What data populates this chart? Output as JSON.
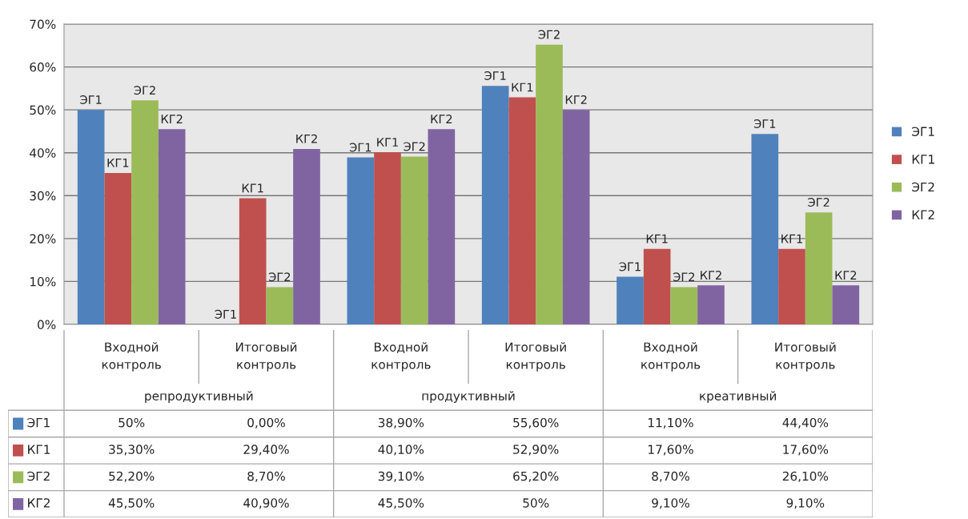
{
  "chart_data": {
    "type": "bar",
    "categories": [
      "Входной контроль",
      "Итоговый контроль",
      "Входной контроль",
      "Итоговый контроль",
      "Входной контроль",
      "Итоговый контроль"
    ],
    "annotations": [
      "репродуктивный",
      "продуктивный",
      "креативный"
    ],
    "series": [
      {
        "name": "ЭГ1",
        "color": "#4f81bd",
        "values": [
          50,
          0,
          38.9,
          55.6,
          11.1,
          44.4
        ],
        "value_labels": [
          "50%",
          "0,00%",
          "38,90%",
          "55,60%",
          "11,10%",
          "44,40%"
        ]
      },
      {
        "name": "КГ1",
        "color": "#c0504d",
        "values": [
          35.3,
          29.4,
          40.1,
          52.9,
          17.6,
          17.6
        ],
        "value_labels": [
          "35,30%",
          "29,40%",
          "40,10%",
          "52,90%",
          "17,60%",
          "17,60%"
        ]
      },
      {
        "name": "ЭГ2",
        "color": "#9bbb59",
        "values": [
          52.2,
          8.7,
          39.1,
          65.2,
          8.7,
          26.1
        ],
        "value_labels": [
          "52,20%",
          "8,70%",
          "39,10%",
          "65,20%",
          "8,70%",
          "26,10%"
        ]
      },
      {
        "name": "КГ2",
        "color": "#8064a2",
        "values": [
          45.5,
          40.9,
          45.5,
          50,
          9.1,
          9.1
        ],
        "value_labels": [
          "45,50%",
          "40,90%",
          "45,50%",
          "50%",
          "9,10%",
          "9,10%"
        ]
      }
    ],
    "ylim": [
      0,
      70
    ],
    "yticks": [
      {
        "value": 0,
        "label": "0%"
      },
      {
        "value": 10,
        "label": "10%"
      },
      {
        "value": 20,
        "label": "20%"
      },
      {
        "value": 30,
        "label": "30%"
      },
      {
        "value": 40,
        "label": "40%"
      },
      {
        "value": 50,
        "label": "50%"
      },
      {
        "value": 60,
        "label": "60%"
      },
      {
        "value": 70,
        "label": "70%"
      }
    ],
    "grid": "y",
    "legend": "right"
  }
}
